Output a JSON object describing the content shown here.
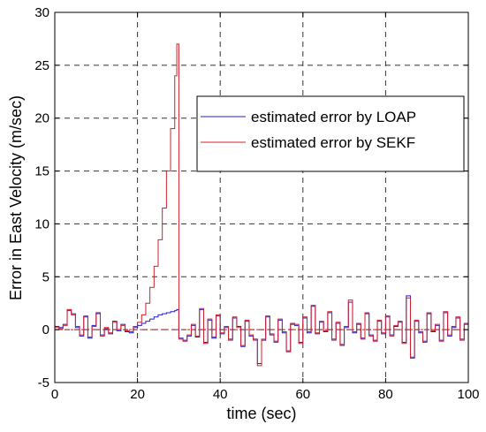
{
  "chart_data": {
    "type": "line",
    "title": "",
    "xlabel": "time (sec)",
    "ylabel": "Error in East Velocity  (m/sec)",
    "xlim": [
      0,
      100
    ],
    "ylim": [
      -5,
      30
    ],
    "xticks": [
      0,
      20,
      40,
      60,
      80,
      100
    ],
    "yticks": [
      -5,
      0,
      5,
      10,
      15,
      20,
      25,
      30
    ],
    "grid": true,
    "legend_position": "top-right",
    "series": [
      {
        "name": "estimated error by LOAP",
        "color": "#1f1fd8",
        "x": [
          0,
          1,
          2,
          3,
          4,
          5,
          6,
          7,
          8,
          9,
          10,
          11,
          12,
          13,
          14,
          15,
          16,
          17,
          18,
          19,
          20,
          21,
          22,
          23,
          24,
          25,
          26,
          27,
          28,
          29,
          29.5,
          30,
          31,
          32,
          33,
          34,
          35,
          36,
          37,
          38,
          39,
          40,
          41,
          42,
          43,
          44,
          45,
          46,
          47,
          48,
          49,
          50,
          51,
          52,
          53,
          54,
          55,
          56,
          57,
          58,
          59,
          60,
          61,
          62,
          63,
          64,
          65,
          66,
          67,
          68,
          69,
          70,
          71,
          72,
          73,
          74,
          75,
          76,
          77,
          78,
          79,
          80,
          81,
          82,
          83,
          84,
          85,
          86,
          87,
          88,
          89,
          90,
          91,
          92,
          93,
          94,
          95,
          96,
          97,
          98,
          99,
          100
        ],
        "y": [
          0.3,
          0.2,
          0.5,
          1.8,
          1.5,
          0.2,
          -0.6,
          1.2,
          -0.8,
          0.4,
          1.6,
          -0.5,
          0.1,
          -0.4,
          0.8,
          -0.1,
          0.5,
          -0.2,
          -0.3,
          0.2,
          0.4,
          0.6,
          0.8,
          1.0,
          1.2,
          1.4,
          1.5,
          1.6,
          1.7,
          1.8,
          1.9,
          -0.8,
          -1.0,
          -0.6,
          0.4,
          -0.7,
          1.9,
          -1.2,
          0.9,
          -0.8,
          1.3,
          -0.4,
          0.2,
          -0.9,
          1.1,
          0.3,
          -1.6,
          0.8,
          -0.6,
          -0.9,
          -3.2,
          -1.0,
          1.2,
          -0.5,
          -1.1,
          0.9,
          -0.3,
          -2.0,
          0.5,
          0.4,
          -1.2,
          1.1,
          -0.3,
          2.2,
          -0.4,
          0.7,
          -0.2,
          1.6,
          -0.9,
          0.6,
          -1.4,
          0.2,
          2.6,
          -0.3,
          0.5,
          -0.8,
          1.5,
          -0.5,
          -1.0,
          0.8,
          -0.4,
          1.2,
          -0.5,
          0.3,
          0.7,
          -1.2,
          3.2,
          -2.6,
          0.8,
          -0.3,
          -1.1,
          1.5,
          -0.2,
          0.4,
          -1.0,
          1.6,
          -0.6,
          0.2,
          1.1,
          -0.9,
          0.5,
          -0.4
        ]
      },
      {
        "name": "estimated error by  SEKF",
        "color": "#d0202a",
        "x": [
          0,
          1,
          2,
          3,
          4,
          5,
          6,
          7,
          8,
          9,
          10,
          11,
          12,
          13,
          14,
          15,
          16,
          17,
          18,
          19,
          20,
          21,
          22,
          23,
          24,
          25,
          26,
          27,
          28,
          29,
          29.5,
          30,
          31,
          32,
          33,
          34,
          35,
          36,
          37,
          38,
          39,
          40,
          41,
          42,
          43,
          44,
          45,
          46,
          47,
          48,
          49,
          50,
          51,
          52,
          53,
          54,
          55,
          56,
          57,
          58,
          59,
          60,
          61,
          62,
          63,
          64,
          65,
          66,
          67,
          68,
          69,
          70,
          71,
          72,
          73,
          74,
          75,
          76,
          77,
          78,
          79,
          80,
          81,
          82,
          83,
          84,
          85,
          86,
          87,
          88,
          89,
          90,
          91,
          92,
          93,
          94,
          95,
          96,
          97,
          98,
          99,
          100
        ],
        "y": [
          0.2,
          0.1,
          0.4,
          1.9,
          1.4,
          0.3,
          -0.5,
          1.3,
          -0.7,
          0.3,
          1.5,
          -0.6,
          0.2,
          -0.3,
          0.7,
          0.0,
          0.4,
          -0.1,
          -0.2,
          0.3,
          0.7,
          1.4,
          2.5,
          4.0,
          6.0,
          8.5,
          11.5,
          15.0,
          19.0,
          24.0,
          27.0,
          -0.9,
          -1.1,
          -0.5,
          0.5,
          -0.6,
          2.0,
          -1.3,
          1.0,
          -0.7,
          1.4,
          -0.3,
          0.3,
          -1.0,
          1.2,
          0.2,
          -1.5,
          0.9,
          -0.5,
          -1.0,
          -3.4,
          -0.9,
          1.3,
          -0.4,
          -1.2,
          1.0,
          -0.2,
          -2.1,
          0.6,
          0.5,
          -1.3,
          1.2,
          -0.2,
          2.3,
          -0.3,
          0.8,
          -0.1,
          1.7,
          -1.0,
          0.7,
          -1.5,
          0.3,
          2.8,
          -0.2,
          0.6,
          -0.9,
          1.6,
          -0.6,
          -1.1,
          0.9,
          -0.3,
          1.3,
          -0.6,
          0.4,
          0.8,
          -1.3,
          3.0,
          -2.7,
          0.9,
          -0.2,
          -1.2,
          1.6,
          -0.1,
          0.5,
          -1.1,
          1.7,
          -0.5,
          0.3,
          1.2,
          -1.0,
          0.6,
          -0.3
        ]
      }
    ]
  }
}
